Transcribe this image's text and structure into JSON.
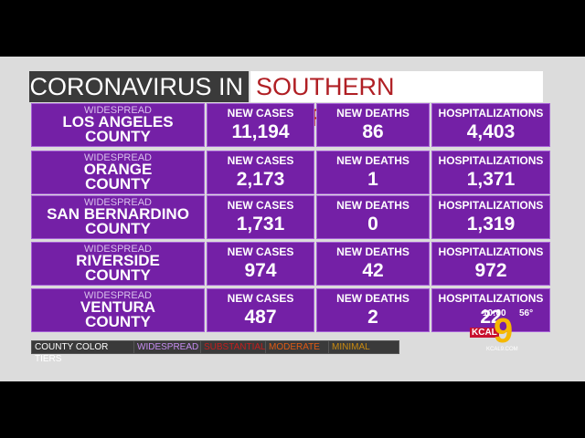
{
  "title": {
    "part1": "CORONAVIRUS IN",
    "part2": "SOUTHERN CALIFORNIA"
  },
  "columns": [
    "NEW CASES",
    "NEW DEATHS",
    "HOSPITALIZATIONS"
  ],
  "table": {
    "rows": [
      {
        "tier": "WIDESPREAD",
        "county": "LOS ANGELES",
        "suffix": "COUNTY",
        "values": [
          "11,194",
          "86",
          "4,403"
        ]
      },
      {
        "tier": "WIDESPREAD",
        "county": "ORANGE",
        "suffix": "COUNTY",
        "values": [
          "2,173",
          "1",
          "1,371"
        ]
      },
      {
        "tier": "WIDESPREAD",
        "county": "SAN BERNARDINO",
        "suffix": "COUNTY",
        "values": [
          "1,731",
          "0",
          "1,319"
        ]
      },
      {
        "tier": "WIDESPREAD",
        "county": "RIVERSIDE",
        "suffix": "COUNTY",
        "values": [
          "974",
          "42",
          "972"
        ]
      },
      {
        "tier": "WIDESPREAD",
        "county": "VENTURA",
        "suffix": "COUNTY",
        "values": [
          "487",
          "2",
          "22"
        ]
      }
    ]
  },
  "legend": {
    "title": "COUNTY COLOR TIERS",
    "tiers": [
      "WIDESPREAD",
      "SUBSTANTIAL",
      "MODERATE",
      "MINIMAL"
    ]
  },
  "logo": {
    "time": "10:00",
    "temp": "56°",
    "station": "KCAL",
    "channel": "9",
    "site": "KCAL9.COM"
  }
}
